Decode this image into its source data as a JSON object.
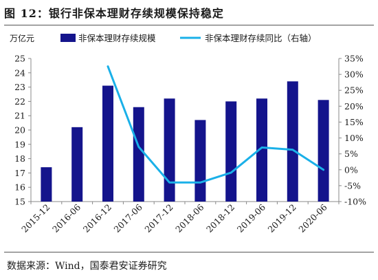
{
  "figure": {
    "title": "图 12：银行非保本理财存续规模保持稳定",
    "source": "数据来源：Wind，国泰君安证券研究"
  },
  "chart_data": {
    "type": "bar",
    "categories": [
      "2015-12",
      "2016-06",
      "2016-12",
      "2017-06",
      "2017-12",
      "2018-06",
      "2018-12",
      "2019-06",
      "2019-12",
      "2020-06"
    ],
    "left_axis_unit": "万亿元",
    "ylim_left": [
      15,
      25
    ],
    "yticks_left": [
      15,
      16,
      17,
      18,
      19,
      20,
      21,
      22,
      23,
      24,
      25
    ],
    "ylim_right": [
      -10,
      35
    ],
    "yticks_right": [
      "-10%",
      "-5%",
      "0%",
      "5%",
      "10%",
      "15%",
      "20%",
      "25%",
      "30%",
      "35%"
    ],
    "yticks_right_values": [
      -10,
      -5,
      0,
      5,
      10,
      15,
      20,
      25,
      30,
      35
    ],
    "series": [
      {
        "name": "非保本理财存续规模",
        "kind": "bar",
        "axis": "left",
        "color": "#14148c",
        "values": [
          17.4,
          20.2,
          23.1,
          21.6,
          22.2,
          20.7,
          22.0,
          22.2,
          23.4,
          22.1
        ]
      },
      {
        "name": "非保本理财存续同比（右轴）",
        "kind": "line",
        "axis": "right",
        "color": "#1ab0e8",
        "values": [
          null,
          null,
          32.5,
          7.2,
          -4.0,
          -4.0,
          -0.9,
          7.0,
          6.3,
          0.0
        ]
      }
    ],
    "grid": false,
    "legend": "top"
  }
}
